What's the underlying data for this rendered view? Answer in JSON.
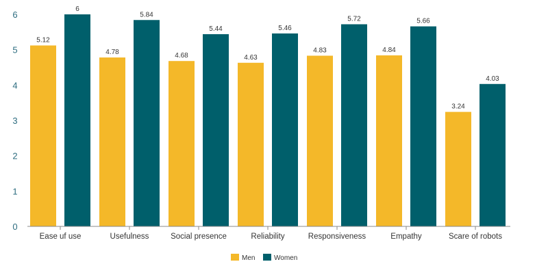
{
  "chart_data": {
    "type": "bar",
    "categories": [
      "Ease uf use",
      "Usefulness",
      "Social presence",
      "Reliability",
      "Responsiveness",
      "Empathy",
      "Scare of robots"
    ],
    "series": [
      {
        "name": "Men",
        "color": "#F4B829",
        "values": [
          5.12,
          4.78,
          4.68,
          4.63,
          4.83,
          4.84,
          3.24
        ],
        "labels": [
          "5.12",
          "4.78",
          "4.68",
          "4.63",
          "4.83",
          "4.84",
          "3.24"
        ]
      },
      {
        "name": "Women",
        "color": "#005F6B",
        "values": [
          6,
          5.84,
          5.44,
          5.46,
          5.72,
          5.66,
          4.03
        ],
        "labels": [
          "6",
          "5.84",
          "5.44",
          "5.46",
          "5.72",
          "5.66",
          "4.03"
        ]
      }
    ],
    "yticks": [
      "0",
      "1",
      "2",
      "3",
      "4",
      "5",
      "6"
    ],
    "ylim": [
      0,
      6
    ],
    "grid": false,
    "legend_position": "bottom",
    "xlabel": "",
    "ylabel": "",
    "title": ""
  }
}
